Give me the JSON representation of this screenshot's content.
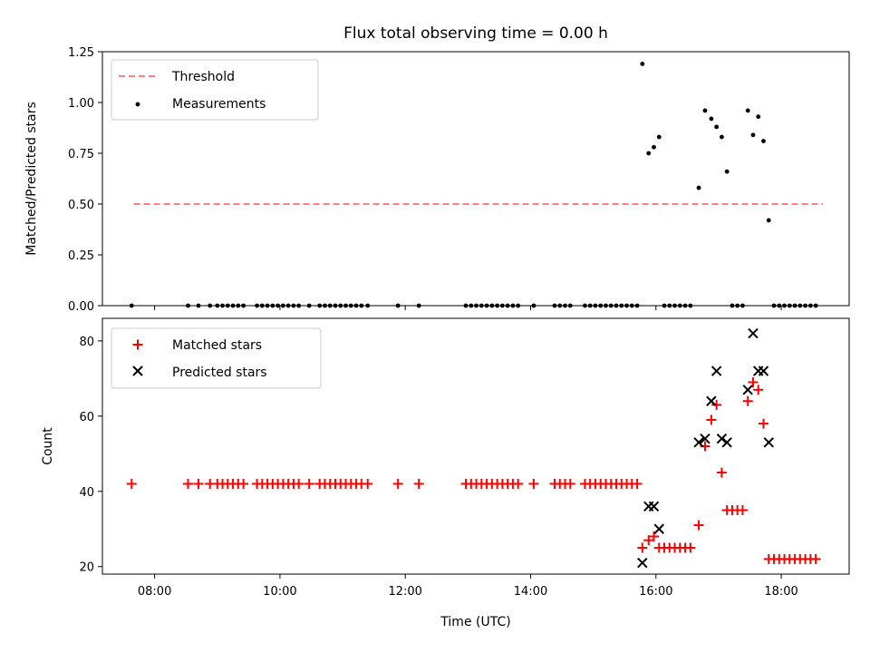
{
  "chart_data": [
    {
      "type": "scatter",
      "title": "Flux total observing time = 0.00 h",
      "xlabel": "",
      "ylabel": "Matched/Predicted stars",
      "xlim": [
        "07:10",
        "19:05"
      ],
      "ylim": [
        0,
        1.25
      ],
      "yticks": [
        "0.00",
        "0.25",
        "0.50",
        "0.75",
        "1.00",
        "1.25"
      ],
      "legend": {
        "position": "top-left",
        "entries": [
          "Threshold",
          "Measurements"
        ]
      },
      "series": [
        {
          "name": "Threshold",
          "kind": "dashed-line",
          "color": "#ff7f7f",
          "x": [
            "07:40",
            "18:40"
          ],
          "y": [
            0.5,
            0.5
          ]
        },
        {
          "name": "Measurements",
          "kind": "dots",
          "color": "#000000",
          "points": [
            [
              "07:38",
              0
            ],
            [
              "08:32",
              0
            ],
            [
              "08:42",
              0
            ],
            [
              "08:53",
              0
            ],
            [
              "09:00",
              0
            ],
            [
              "09:05",
              0
            ],
            [
              "09:10",
              0
            ],
            [
              "09:15",
              0
            ],
            [
              "09:20",
              0
            ],
            [
              "09:25",
              0
            ],
            [
              "09:38",
              0
            ],
            [
              "09:43",
              0
            ],
            [
              "09:48",
              0
            ],
            [
              "09:53",
              0
            ],
            [
              "09:58",
              0
            ],
            [
              "10:03",
              0
            ],
            [
              "10:08",
              0
            ],
            [
              "10:13",
              0
            ],
            [
              "10:18",
              0
            ],
            [
              "10:28",
              0
            ],
            [
              "10:38",
              0
            ],
            [
              "10:43",
              0
            ],
            [
              "10:48",
              0
            ],
            [
              "10:53",
              0
            ],
            [
              "10:58",
              0
            ],
            [
              "11:03",
              0
            ],
            [
              "11:08",
              0
            ],
            [
              "11:13",
              0
            ],
            [
              "11:18",
              0
            ],
            [
              "11:24",
              0
            ],
            [
              "11:53",
              0
            ],
            [
              "12:13",
              0
            ],
            [
              "12:58",
              0
            ],
            [
              "13:03",
              0
            ],
            [
              "13:08",
              0
            ],
            [
              "13:13",
              0
            ],
            [
              "13:18",
              0
            ],
            [
              "13:23",
              0
            ],
            [
              "13:28",
              0
            ],
            [
              "13:33",
              0
            ],
            [
              "13:38",
              0
            ],
            [
              "13:43",
              0
            ],
            [
              "13:48",
              0
            ],
            [
              "14:03",
              0
            ],
            [
              "14:23",
              0
            ],
            [
              "14:28",
              0
            ],
            [
              "14:33",
              0
            ],
            [
              "14:38",
              0
            ],
            [
              "14:52",
              0
            ],
            [
              "14:57",
              0
            ],
            [
              "15:02",
              0
            ],
            [
              "15:07",
              0
            ],
            [
              "15:12",
              0
            ],
            [
              "15:17",
              0
            ],
            [
              "15:22",
              0
            ],
            [
              "15:27",
              0
            ],
            [
              "15:32",
              0
            ],
            [
              "15:37",
              0
            ],
            [
              "15:42",
              0
            ],
            [
              "15:47",
              1.19
            ],
            [
              "15:53",
              0.75
            ],
            [
              "15:58",
              0.78
            ],
            [
              "16:03",
              0.83
            ],
            [
              "16:08",
              0
            ],
            [
              "16:13",
              0
            ],
            [
              "16:18",
              0
            ],
            [
              "16:23",
              0
            ],
            [
              "16:28",
              0
            ],
            [
              "16:33",
              0
            ],
            [
              "16:41",
              0.58
            ],
            [
              "16:47",
              0.96
            ],
            [
              "16:53",
              0.92
            ],
            [
              "16:58",
              0.88
            ],
            [
              "17:03",
              0.83
            ],
            [
              "17:08",
              0.66
            ],
            [
              "17:13",
              0
            ],
            [
              "17:18",
              0
            ],
            [
              "17:23",
              0
            ],
            [
              "17:28",
              0.96
            ],
            [
              "17:33",
              0.84
            ],
            [
              "17:38",
              0.93
            ],
            [
              "17:43",
              0.81
            ],
            [
              "17:48",
              0.42
            ],
            [
              "17:53",
              0
            ],
            [
              "17:58",
              0
            ],
            [
              "18:03",
              0
            ],
            [
              "18:08",
              0
            ],
            [
              "18:13",
              0
            ],
            [
              "18:18",
              0
            ],
            [
              "18:23",
              0
            ],
            [
              "18:28",
              0
            ],
            [
              "18:33",
              0
            ]
          ]
        }
      ]
    },
    {
      "type": "scatter",
      "title": "",
      "xlabel": "Time (UTC)",
      "ylabel": "Count",
      "xlim": [
        "07:10",
        "19:05"
      ],
      "ylim": [
        18,
        86
      ],
      "xticks": [
        "08:00",
        "10:00",
        "12:00",
        "14:00",
        "16:00",
        "18:00"
      ],
      "yticks": [
        "20",
        "40",
        "60",
        "80"
      ],
      "legend": {
        "position": "top-left",
        "entries": [
          "Matched stars",
          "Predicted stars"
        ]
      },
      "series": [
        {
          "name": "Matched stars",
          "kind": "plus",
          "color": "#ff0000",
          "points": [
            [
              "07:38",
              42
            ],
            [
              "08:32",
              42
            ],
            [
              "08:42",
              42
            ],
            [
              "08:53",
              42
            ],
            [
              "09:00",
              42
            ],
            [
              "09:05",
              42
            ],
            [
              "09:10",
              42
            ],
            [
              "09:15",
              42
            ],
            [
              "09:20",
              42
            ],
            [
              "09:25",
              42
            ],
            [
              "09:38",
              42
            ],
            [
              "09:43",
              42
            ],
            [
              "09:48",
              42
            ],
            [
              "09:53",
              42
            ],
            [
              "09:58",
              42
            ],
            [
              "10:03",
              42
            ],
            [
              "10:08",
              42
            ],
            [
              "10:13",
              42
            ],
            [
              "10:18",
              42
            ],
            [
              "10:28",
              42
            ],
            [
              "10:38",
              42
            ],
            [
              "10:43",
              42
            ],
            [
              "10:48",
              42
            ],
            [
              "10:53",
              42
            ],
            [
              "10:58",
              42
            ],
            [
              "11:03",
              42
            ],
            [
              "11:08",
              42
            ],
            [
              "11:13",
              42
            ],
            [
              "11:18",
              42
            ],
            [
              "11:24",
              42
            ],
            [
              "11:53",
              42
            ],
            [
              "12:13",
              42
            ],
            [
              "12:58",
              42
            ],
            [
              "13:03",
              42
            ],
            [
              "13:08",
              42
            ],
            [
              "13:13",
              42
            ],
            [
              "13:18",
              42
            ],
            [
              "13:23",
              42
            ],
            [
              "13:28",
              42
            ],
            [
              "13:33",
              42
            ],
            [
              "13:38",
              42
            ],
            [
              "13:43",
              42
            ],
            [
              "13:48",
              42
            ],
            [
              "14:03",
              42
            ],
            [
              "14:23",
              42
            ],
            [
              "14:28",
              42
            ],
            [
              "14:33",
              42
            ],
            [
              "14:38",
              42
            ],
            [
              "14:52",
              42
            ],
            [
              "14:57",
              42
            ],
            [
              "15:02",
              42
            ],
            [
              "15:07",
              42
            ],
            [
              "15:12",
              42
            ],
            [
              "15:17",
              42
            ],
            [
              "15:22",
              42
            ],
            [
              "15:27",
              42
            ],
            [
              "15:32",
              42
            ],
            [
              "15:37",
              42
            ],
            [
              "15:42",
              42
            ],
            [
              "15:47",
              25
            ],
            [
              "15:53",
              27
            ],
            [
              "15:58",
              28
            ],
            [
              "16:03",
              25
            ],
            [
              "16:08",
              25
            ],
            [
              "16:13",
              25
            ],
            [
              "16:18",
              25
            ],
            [
              "16:23",
              25
            ],
            [
              "16:28",
              25
            ],
            [
              "16:33",
              25
            ],
            [
              "16:41",
              31
            ],
            [
              "16:47",
              52
            ],
            [
              "16:53",
              59
            ],
            [
              "16:58",
              63
            ],
            [
              "17:03",
              45
            ],
            [
              "17:08",
              35
            ],
            [
              "17:13",
              35
            ],
            [
              "17:18",
              35
            ],
            [
              "17:23",
              35
            ],
            [
              "17:28",
              64
            ],
            [
              "17:33",
              69
            ],
            [
              "17:38",
              67
            ],
            [
              "17:43",
              58
            ],
            [
              "17:48",
              22
            ],
            [
              "17:53",
              22
            ],
            [
              "17:58",
              22
            ],
            [
              "18:03",
              22
            ],
            [
              "18:08",
              22
            ],
            [
              "18:13",
              22
            ],
            [
              "18:18",
              22
            ],
            [
              "18:23",
              22
            ],
            [
              "18:28",
              22
            ],
            [
              "18:33",
              22
            ]
          ]
        },
        {
          "name": "Predicted stars",
          "kind": "x",
          "color": "#000000",
          "points": [
            [
              "15:47",
              21
            ],
            [
              "15:53",
              36
            ],
            [
              "15:58",
              36
            ],
            [
              "16:03",
              30
            ],
            [
              "16:41",
              53
            ],
            [
              "16:47",
              54
            ],
            [
              "16:53",
              64
            ],
            [
              "16:58",
              72
            ],
            [
              "17:03",
              54
            ],
            [
              "17:08",
              53
            ],
            [
              "17:28",
              67
            ],
            [
              "17:33",
              82
            ],
            [
              "17:38",
              72
            ],
            [
              "17:43",
              72
            ],
            [
              "17:48",
              53
            ]
          ]
        }
      ]
    }
  ]
}
